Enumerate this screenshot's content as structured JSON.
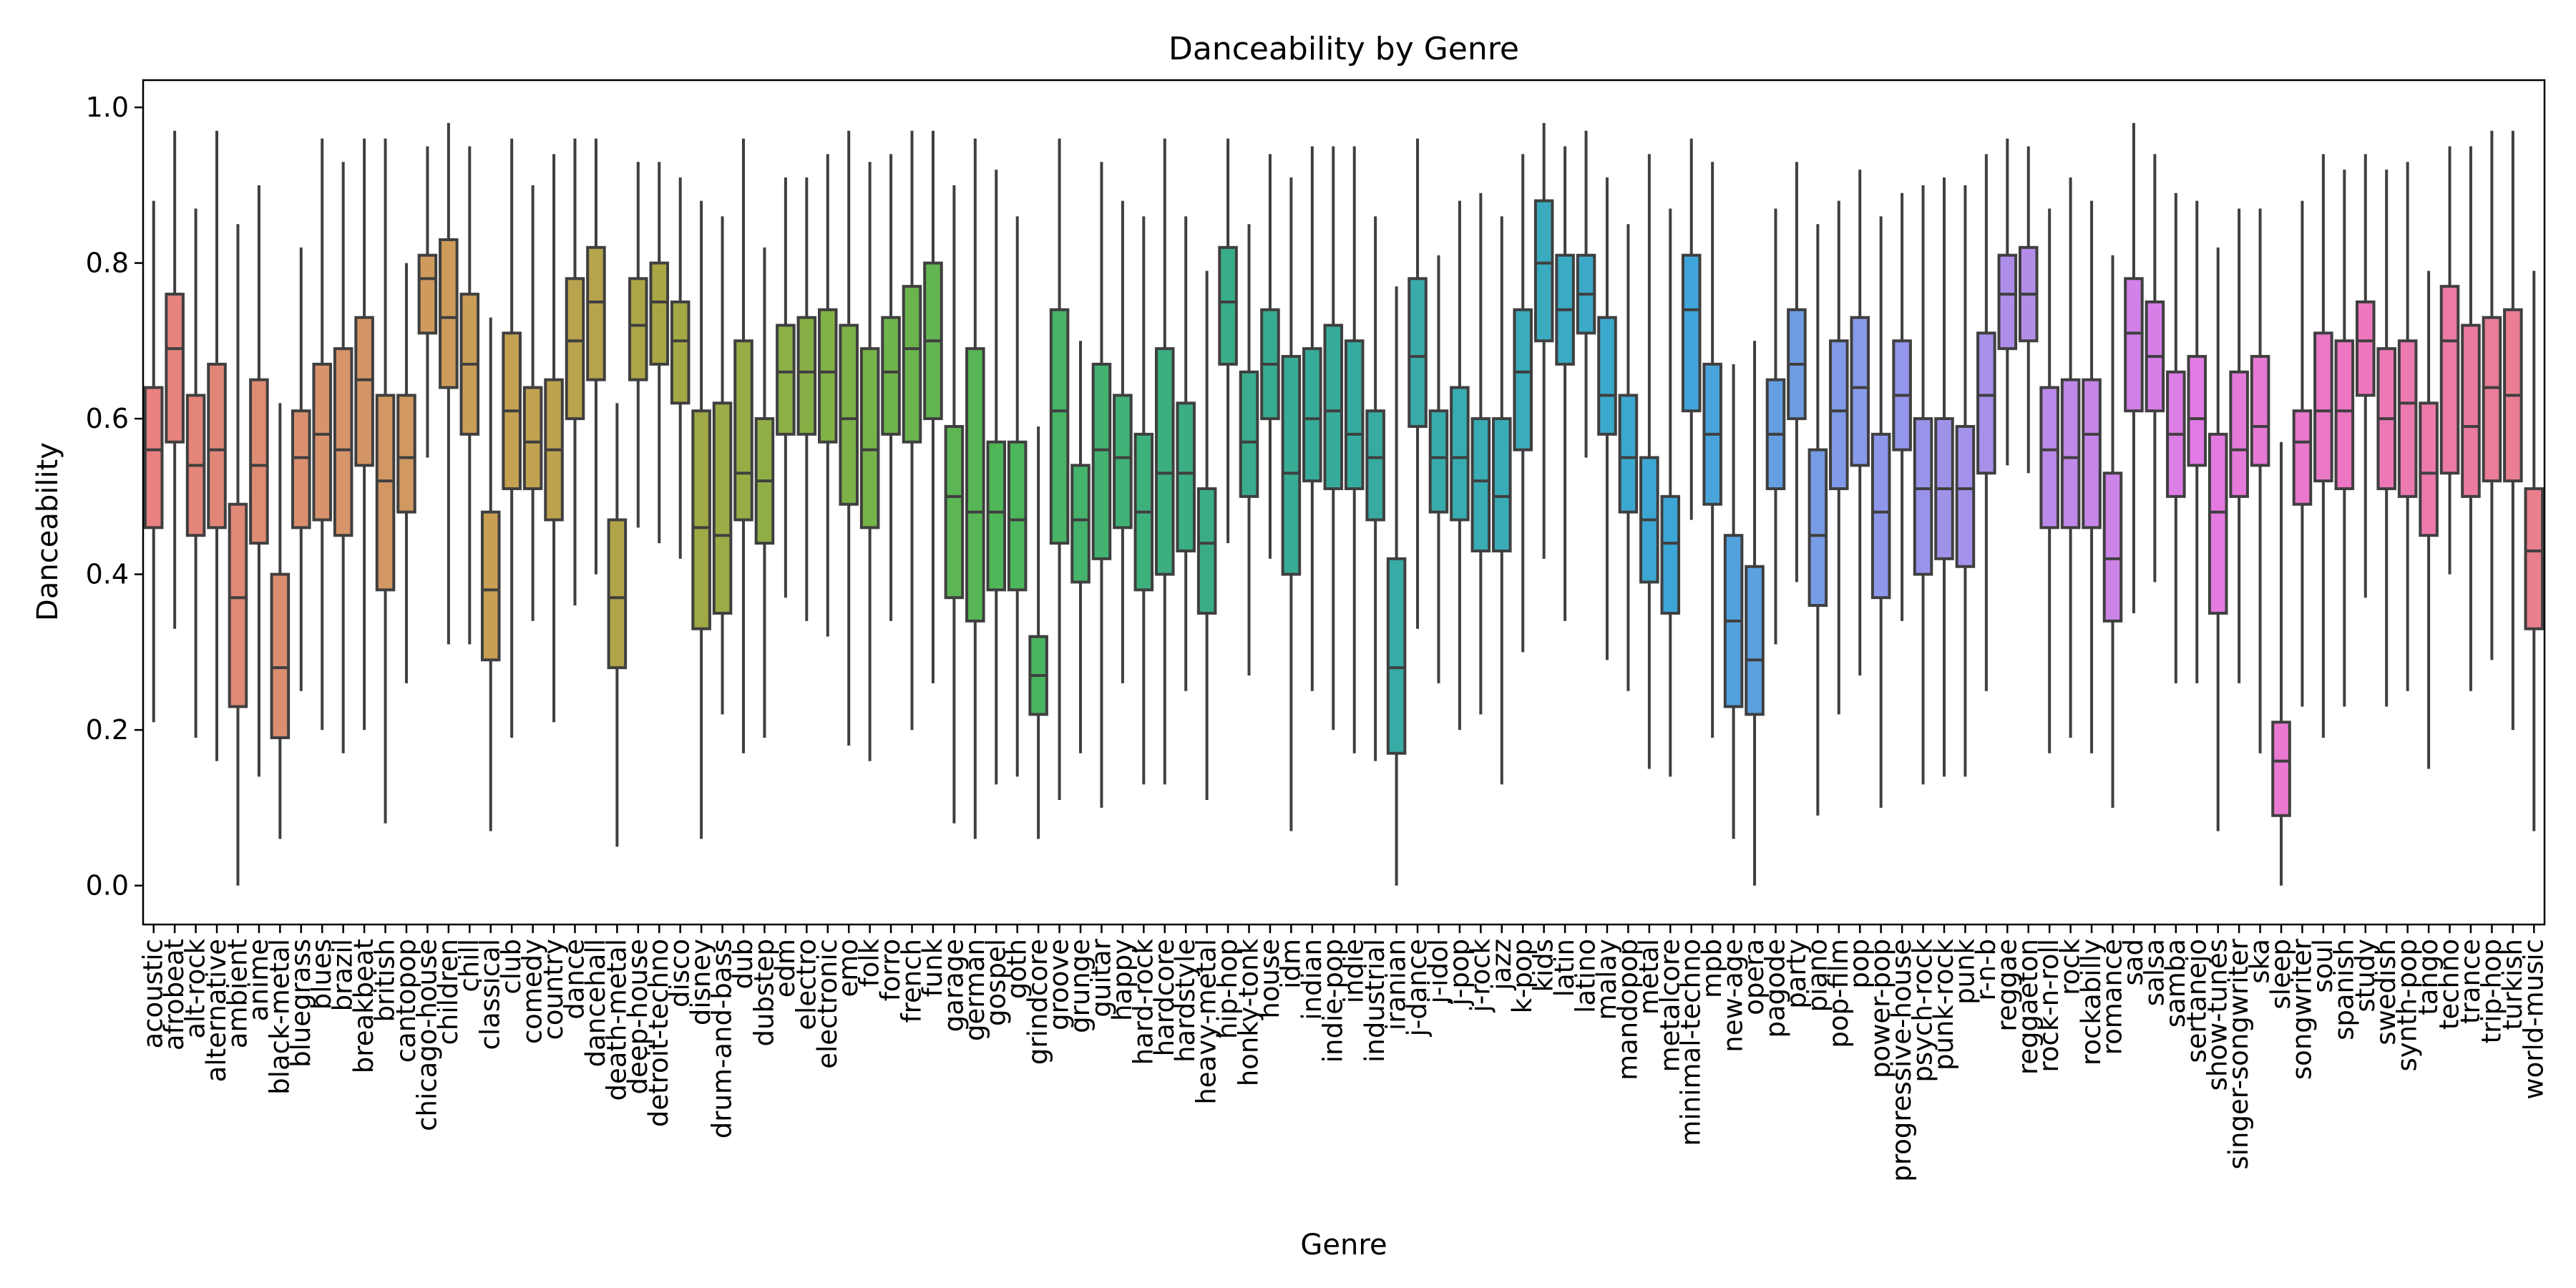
{
  "chart_data": {
    "type": "boxplot",
    "title": "Danceability by Genre",
    "xlabel": "Genre",
    "ylabel": "Danceability",
    "ylim": [
      -0.05,
      1.035
    ],
    "yticks": [
      0.0,
      0.2,
      0.4,
      0.6,
      0.8,
      1.0
    ],
    "ytick_labels": [
      "0.0",
      "0.2",
      "0.4",
      "0.6",
      "0.8",
      "1.0"
    ],
    "grid": false,
    "legend": "none",
    "categories": [
      "acoustic",
      "afrobeat",
      "alt-rock",
      "alternative",
      "ambient",
      "anime",
      "black-metal",
      "bluegrass",
      "blues",
      "brazil",
      "breakbeat",
      "british",
      "cantopop",
      "chicago-house",
      "children",
      "chill",
      "classical",
      "club",
      "comedy",
      "country",
      "dance",
      "dancehall",
      "death-metal",
      "deep-house",
      "detroit-techno",
      "disco",
      "disney",
      "drum-and-bass",
      "dub",
      "dubstep",
      "edm",
      "electro",
      "electronic",
      "emo",
      "folk",
      "forro",
      "french",
      "funk",
      "garage",
      "german",
      "gospel",
      "goth",
      "grindcore",
      "groove",
      "grunge",
      "guitar",
      "happy",
      "hard-rock",
      "hardcore",
      "hardstyle",
      "heavy-metal",
      "hip-hop",
      "honky-tonk",
      "house",
      "idm",
      "indian",
      "indie-pop",
      "indie",
      "industrial",
      "iranian",
      "j-dance",
      "j-idol",
      "j-pop",
      "j-rock",
      "jazz",
      "k-pop",
      "kids",
      "latin",
      "latino",
      "malay",
      "mandopop",
      "metal",
      "metalcore",
      "minimal-techno",
      "mpb",
      "new-age",
      "opera",
      "pagode",
      "party",
      "piano",
      "pop-film",
      "pop",
      "power-pop",
      "progressive-house",
      "psych-rock",
      "punk-rock",
      "punk",
      "r-n-b",
      "reggae",
      "reggaeton",
      "rock-n-roll",
      "rock",
      "rockabilly",
      "romance",
      "sad",
      "salsa",
      "samba",
      "sertanejo",
      "show-tunes",
      "singer-songwriter",
      "ska",
      "sleep",
      "songwriter",
      "soul",
      "spanish",
      "study",
      "swedish",
      "synth-pop",
      "tango",
      "techno",
      "trance",
      "trip-hop",
      "turkish",
      "world-music"
    ],
    "q1": [
      0.46,
      0.57,
      0.45,
      0.46,
      0.23,
      0.44,
      0.19,
      0.46,
      0.47,
      0.45,
      0.54,
      0.38,
      0.48,
      0.71,
      0.64,
      0.58,
      0.29,
      0.51,
      0.51,
      0.47,
      0.6,
      0.65,
      0.28,
      0.65,
      0.67,
      0.62,
      0.33,
      0.35,
      0.47,
      0.44,
      0.58,
      0.58,
      0.57,
      0.49,
      0.46,
      0.58,
      0.57,
      0.6,
      0.37,
      0.34,
      0.38,
      0.38,
      0.22,
      0.44,
      0.39,
      0.42,
      0.46,
      0.38,
      0.4,
      0.43,
      0.35,
      0.67,
      0.5,
      0.6,
      0.4,
      0.52,
      0.51,
      0.51,
      0.47,
      0.17,
      0.59,
      0.48,
      0.47,
      0.43,
      0.43,
      0.56,
      0.7,
      0.67,
      0.71,
      0.58,
      0.48,
      0.39,
      0.35,
      0.61,
      0.49,
      0.23,
      0.22,
      0.51,
      0.6,
      0.36,
      0.51,
      0.54,
      0.37,
      0.56,
      0.4,
      0.42,
      0.41,
      0.53,
      0.69,
      0.7,
      0.46,
      0.46,
      0.46,
      0.34,
      0.61,
      0.61,
      0.5,
      0.54,
      0.35,
      0.5,
      0.54,
      0.09,
      0.49,
      0.52,
      0.51,
      0.63,
      0.51,
      0.5,
      0.45,
      0.53,
      0.5,
      0.52,
      0.52,
      0.33
    ],
    "median": [
      0.56,
      0.69,
      0.54,
      0.56,
      0.37,
      0.54,
      0.28,
      0.55,
      0.58,
      0.56,
      0.65,
      0.52,
      0.55,
      0.78,
      0.73,
      0.67,
      0.38,
      0.61,
      0.57,
      0.56,
      0.7,
      0.75,
      0.37,
      0.72,
      0.75,
      0.7,
      0.46,
      0.45,
      0.53,
      0.52,
      0.66,
      0.66,
      0.66,
      0.6,
      0.56,
      0.66,
      0.69,
      0.7,
      0.5,
      0.48,
      0.48,
      0.47,
      0.27,
      0.61,
      0.47,
      0.56,
      0.55,
      0.48,
      0.53,
      0.53,
      0.44,
      0.75,
      0.57,
      0.67,
      0.53,
      0.6,
      0.61,
      0.58,
      0.55,
      0.28,
      0.68,
      0.55,
      0.55,
      0.52,
      0.5,
      0.66,
      0.8,
      0.74,
      0.76,
      0.63,
      0.55,
      0.47,
      0.44,
      0.74,
      0.58,
      0.34,
      0.29,
      0.58,
      0.67,
      0.45,
      0.61,
      0.64,
      0.48,
      0.63,
      0.51,
      0.51,
      0.51,
      0.63,
      0.76,
      0.76,
      0.56,
      0.55,
      0.58,
      0.42,
      0.71,
      0.68,
      0.58,
      0.6,
      0.48,
      0.56,
      0.59,
      0.16,
      0.57,
      0.61,
      0.61,
      0.7,
      0.6,
      0.62,
      0.53,
      0.7,
      0.59,
      0.64,
      0.63,
      0.43
    ],
    "q3": [
      0.64,
      0.76,
      0.63,
      0.67,
      0.49,
      0.65,
      0.4,
      0.61,
      0.67,
      0.69,
      0.73,
      0.63,
      0.63,
      0.81,
      0.83,
      0.76,
      0.48,
      0.71,
      0.64,
      0.65,
      0.78,
      0.82,
      0.47,
      0.78,
      0.8,
      0.75,
      0.61,
      0.62,
      0.7,
      0.6,
      0.72,
      0.73,
      0.74,
      0.72,
      0.69,
      0.73,
      0.77,
      0.8,
      0.59,
      0.69,
      0.57,
      0.57,
      0.32,
      0.74,
      0.54,
      0.67,
      0.63,
      0.58,
      0.69,
      0.62,
      0.51,
      0.82,
      0.66,
      0.74,
      0.68,
      0.69,
      0.72,
      0.7,
      0.61,
      0.42,
      0.78,
      0.61,
      0.64,
      0.6,
      0.6,
      0.74,
      0.88,
      0.81,
      0.81,
      0.73,
      0.63,
      0.55,
      0.5,
      0.81,
      0.67,
      0.45,
      0.41,
      0.65,
      0.74,
      0.56,
      0.7,
      0.73,
      0.58,
      0.7,
      0.6,
      0.6,
      0.59,
      0.71,
      0.81,
      0.82,
      0.64,
      0.65,
      0.65,
      0.53,
      0.78,
      0.75,
      0.66,
      0.68,
      0.58,
      0.66,
      0.68,
      0.21,
      0.61,
      0.71,
      0.7,
      0.75,
      0.69,
      0.7,
      0.62,
      0.77,
      0.72,
      0.73,
      0.74,
      0.51
    ],
    "whisker_low": [
      0.21,
      0.33,
      0.19,
      0.16,
      0.0,
      0.14,
      0.06,
      0.25,
      0.2,
      0.17,
      0.2,
      0.08,
      0.26,
      0.55,
      0.31,
      0.31,
      0.07,
      0.19,
      0.34,
      0.21,
      0.36,
      0.4,
      0.05,
      0.46,
      0.44,
      0.42,
      0.06,
      0.22,
      0.17,
      0.19,
      0.37,
      0.34,
      0.32,
      0.18,
      0.16,
      0.34,
      0.2,
      0.26,
      0.08,
      0.06,
      0.13,
      0.14,
      0.06,
      0.11,
      0.17,
      0.1,
      0.26,
      0.13,
      0.13,
      0.25,
      0.11,
      0.44,
      0.27,
      0.42,
      0.07,
      0.25,
      0.2,
      0.17,
      0.16,
      0.0,
      0.33,
      0.26,
      0.2,
      0.22,
      0.13,
      0.3,
      0.42,
      0.34,
      0.55,
      0.29,
      0.25,
      0.15,
      0.14,
      0.47,
      0.19,
      0.06,
      0.0,
      0.31,
      0.39,
      0.09,
      0.22,
      0.27,
      0.1,
      0.34,
      0.13,
      0.14,
      0.14,
      0.25,
      0.54,
      0.53,
      0.17,
      0.19,
      0.17,
      0.1,
      0.35,
      0.39,
      0.26,
      0.26,
      0.07,
      0.26,
      0.17,
      0.0,
      0.23,
      0.19,
      0.23,
      0.37,
      0.23,
      0.25,
      0.15,
      0.4,
      0.25,
      0.29,
      0.2,
      0.07
    ],
    "whisker_high": [
      0.88,
      0.97,
      0.87,
      0.97,
      0.85,
      0.9,
      0.62,
      0.82,
      0.96,
      0.93,
      0.96,
      0.96,
      0.8,
      0.95,
      0.98,
      0.95,
      0.73,
      0.96,
      0.9,
      0.94,
      0.96,
      0.96,
      0.62,
      0.93,
      0.93,
      0.91,
      0.88,
      0.86,
      0.96,
      0.82,
      0.91,
      0.91,
      0.94,
      0.97,
      0.93,
      0.94,
      0.97,
      0.97,
      0.9,
      0.96,
      0.92,
      0.86,
      0.59,
      0.96,
      0.7,
      0.93,
      0.88,
      0.86,
      0.96,
      0.86,
      0.79,
      0.96,
      0.85,
      0.94,
      0.91,
      0.95,
      0.95,
      0.95,
      0.86,
      0.77,
      0.96,
      0.81,
      0.88,
      0.89,
      0.86,
      0.94,
      0.98,
      0.95,
      0.97,
      0.91,
      0.85,
      0.94,
      0.87,
      0.96,
      0.93,
      0.67,
      0.7,
      0.87,
      0.93,
      0.85,
      0.88,
      0.92,
      0.86,
      0.89,
      0.9,
      0.91,
      0.9,
      0.94,
      0.96,
      0.95,
      0.87,
      0.91,
      0.88,
      0.81,
      0.98,
      0.94,
      0.89,
      0.88,
      0.82,
      0.87,
      0.87,
      0.57,
      0.88,
      0.94,
      0.92,
      0.94,
      0.92,
      0.93,
      0.79,
      0.95,
      0.95,
      0.97,
      0.97,
      0.79
    ]
  },
  "colors": {
    "palette": [
      "#e8817f",
      "#d8926c",
      "#c9a053",
      "#a8a745",
      "#81b246",
      "#4db759",
      "#3bae82",
      "#36ab9d",
      "#3aacba",
      "#3ca6d9",
      "#8799ea",
      "#b38de9",
      "#e27be6",
      "#ef77be",
      "#e97f8d"
    ],
    "box_edge": "#3f3f3f"
  }
}
